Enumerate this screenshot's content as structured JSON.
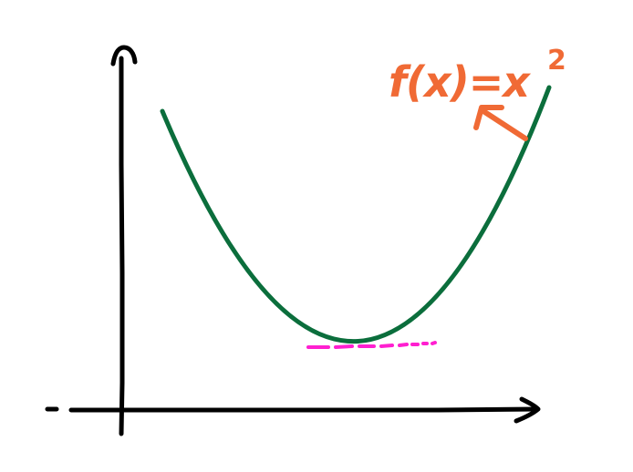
{
  "annotation": {
    "function_text": "f(x)=x",
    "exponent_text": "2"
  },
  "colors": {
    "axes": "#000000",
    "curve": "#0b6e3c",
    "annotation": "#f06a35",
    "tangent": "#ff1fd0"
  },
  "icons": {
    "x_axis_head": "arrowhead-right-icon",
    "y_axis_head": "arrowhead-up-icon",
    "pointer": "arrow-icon"
  }
}
